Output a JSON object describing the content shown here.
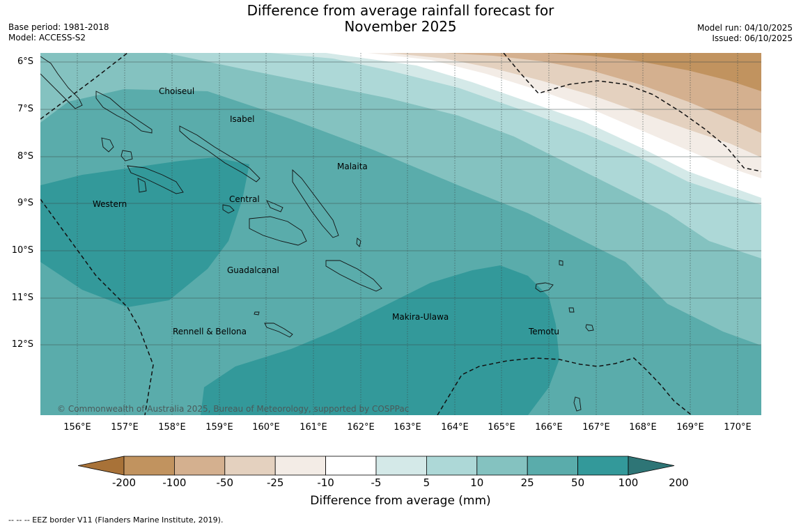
{
  "title_line1": "Difference from average rainfall forecast for",
  "title_line2": "November 2025",
  "base_period": "Base period: 1981-2018",
  "model": "Model: ACCESS-S2",
  "model_run": "Model run: 04/10/2025",
  "issued": "Issued: 06/10/2025",
  "lat_labels": [
    "6°S",
    "7°S",
    "8°S",
    "9°S",
    "10°S",
    "11°S",
    "12°S"
  ],
  "lon_labels": [
    "156°E",
    "157°E",
    "158°E",
    "159°E",
    "160°E",
    "161°E",
    "162°E",
    "163°E",
    "164°E",
    "165°E",
    "166°E",
    "167°E",
    "168°E",
    "169°E",
    "170°E"
  ],
  "regions": {
    "choiseul": "Choiseul",
    "isabel": "Isabel",
    "malaita": "Malaita",
    "western": "Western",
    "central": "Central",
    "guadalcanal": "Guadalcanal",
    "rennell": "Rennell & Bellona",
    "makira": "Makira-Ulawa",
    "temotu": "Temotu"
  },
  "copyright": "© Commonwealth of Australia 2025, Bureau of Meteorology, supported by COSPPac",
  "colorbar": {
    "title": "Difference from average (mm)",
    "labels": [
      "-200",
      "-100",
      "-50",
      "-25",
      "-10",
      "-5",
      "5",
      "10",
      "25",
      "50",
      "100",
      "200"
    ],
    "colors": [
      "#a87238",
      "#c1935f",
      "#d4b08f",
      "#e4d1bf",
      "#f3ece6",
      "#ffffff",
      "#d4e9e8",
      "#add8d7",
      "#84c2c0",
      "#5aacab",
      "#33999a",
      "#2e7576"
    ]
  },
  "legend_text": "--  --  -- EEZ border V11 (Flanders Marine Institute, 2019)."
}
